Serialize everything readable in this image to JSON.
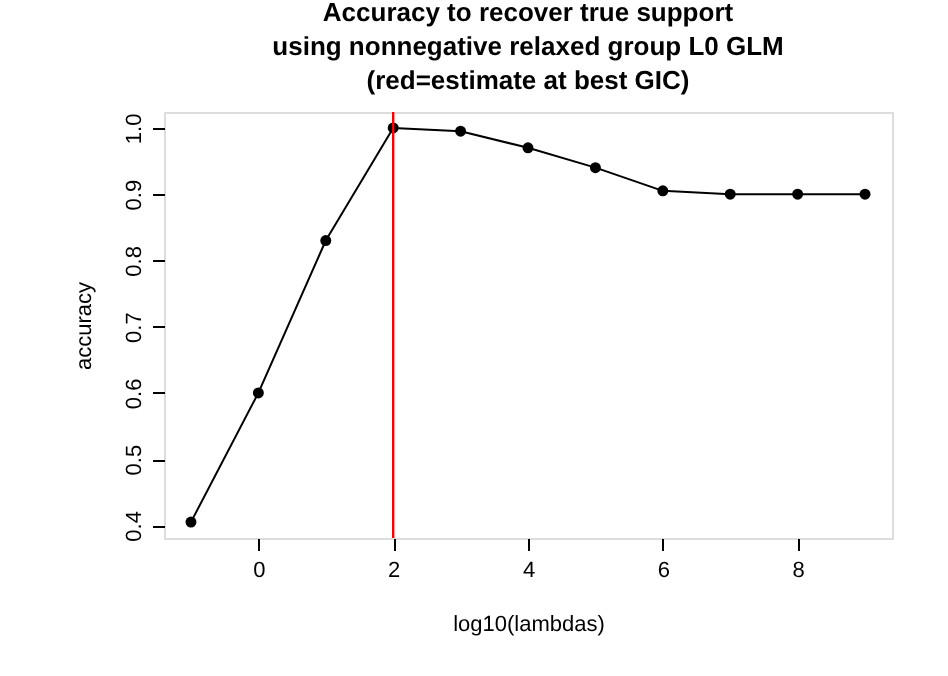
{
  "chart_data": {
    "type": "line",
    "title": "Accuracy to recover true support\nusing nonnegative relaxed group L0 GLM\n(red=estimate at best GIC)",
    "xlabel": "log10(lambdas)",
    "ylabel": "accuracy",
    "x": [
      -1,
      0,
      1,
      2,
      3,
      4,
      5,
      6,
      7,
      8,
      9
    ],
    "series": [
      {
        "color": "#000000",
        "values": [
          0.405,
          0.6,
          0.83,
          1.0,
          0.995,
          0.97,
          0.94,
          0.905,
          0.9,
          0.9,
          0.9
        ]
      }
    ],
    "xlim": [
      -1.4,
      9.4
    ],
    "ylim": [
      0.381,
      1.024
    ],
    "xticks": [
      0,
      2,
      4,
      6,
      8
    ],
    "yticks": [
      0.4,
      0.5,
      0.6,
      0.7,
      0.8,
      0.9,
      {
        "value": 1,
        "label": "1.0"
      }
    ],
    "ref_lines": [
      {
        "axis": "x",
        "value": 2,
        "color": "#ff0000"
      }
    ],
    "marker": "circle",
    "line_style": "solid",
    "grid": false
  }
}
